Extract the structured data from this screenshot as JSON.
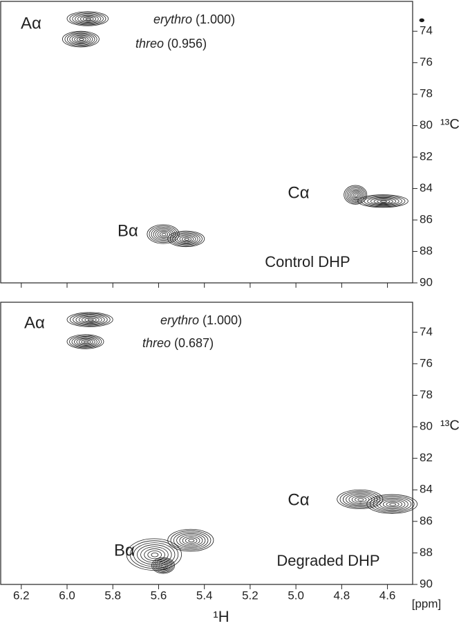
{
  "chart_data": [
    {
      "type": "contour",
      "xlim": [
        6.29,
        4.49
      ],
      "ylim": [
        72.1,
        90
      ],
      "xticks": [
        6.2,
        {
          "value": 6,
          "label": "6.0"
        },
        5.8,
        5.6,
        5.4,
        5.2,
        {
          "value": 5,
          "label": "5.0"
        },
        4.8,
        4.6
      ],
      "yticks": [
        74,
        76,
        78,
        80,
        82,
        84,
        86,
        88,
        90
      ],
      "xtick_labels": false,
      "y_label": "¹³C",
      "color": "#1a1a1a",
      "peak_labels": [
        "Aα",
        "Bα",
        "Cα"
      ],
      "sample": "Control DHP",
      "ratios": [
        {
          "name": "erythro",
          "label": "(1.000)"
        },
        {
          "name": "threo",
          "label": "(0.956)"
        }
      ],
      "peaks": [
        {
          "x": 5.91,
          "y": 73.2,
          "dx": 0.09,
          "dy": 0.45
        },
        {
          "x": 5.94,
          "y": 74.5,
          "dx": 0.08,
          "dy": 0.5
        },
        {
          "x": 5.58,
          "y": 86.9,
          "dx": 0.07,
          "dy": 0.6
        },
        {
          "x": 5.48,
          "y": 87.2,
          "dx": 0.08,
          "dy": 0.5
        },
        {
          "x": 4.74,
          "y": 84.4,
          "dx": 0.05,
          "dy": 0.6
        },
        {
          "x": 4.62,
          "y": 84.8,
          "dx": 0.11,
          "dy": 0.4
        },
        {
          "x": 4.45,
          "y": 73.3,
          "dx": 0.01,
          "dy": 0.1
        }
      ]
    },
    {
      "type": "contour",
      "xlim": [
        6.29,
        4.49
      ],
      "ylim": [
        72.1,
        90
      ],
      "xticks": [
        6.2,
        {
          "value": 6,
          "label": "6.0"
        },
        5.8,
        5.6,
        5.4,
        5.2,
        {
          "value": 5,
          "label": "5.0"
        },
        4.8,
        4.6
      ],
      "yticks": [
        74,
        76,
        78,
        80,
        82,
        84,
        86,
        88,
        90
      ],
      "xtick_labels": true,
      "x_label": "¹H",
      "x_unit": "[ppm]",
      "y_label": "¹³C",
      "color": "#1a1a1a",
      "peak_labels": [
        "Aα",
        "Bα",
        "Cα"
      ],
      "sample": "Degraded DHP",
      "ratios": [
        {
          "name": "erythro",
          "label": "(1.000)"
        },
        {
          "name": "threo",
          "label": "(0.687)"
        }
      ],
      "peaks": [
        {
          "x": 5.9,
          "y": 73.2,
          "dx": 0.1,
          "dy": 0.45
        },
        {
          "x": 5.92,
          "y": 74.6,
          "dx": 0.08,
          "dy": 0.45
        },
        {
          "x": 5.62,
          "y": 88.1,
          "dx": 0.12,
          "dy": 1.0
        },
        {
          "x": 5.46,
          "y": 87.2,
          "dx": 0.1,
          "dy": 0.7
        },
        {
          "x": 5.58,
          "y": 88.8,
          "dx": 0.05,
          "dy": 0.5
        },
        {
          "x": 4.72,
          "y": 84.6,
          "dx": 0.1,
          "dy": 0.6
        },
        {
          "x": 4.58,
          "y": 84.9,
          "dx": 0.11,
          "dy": 0.6
        }
      ]
    }
  ]
}
